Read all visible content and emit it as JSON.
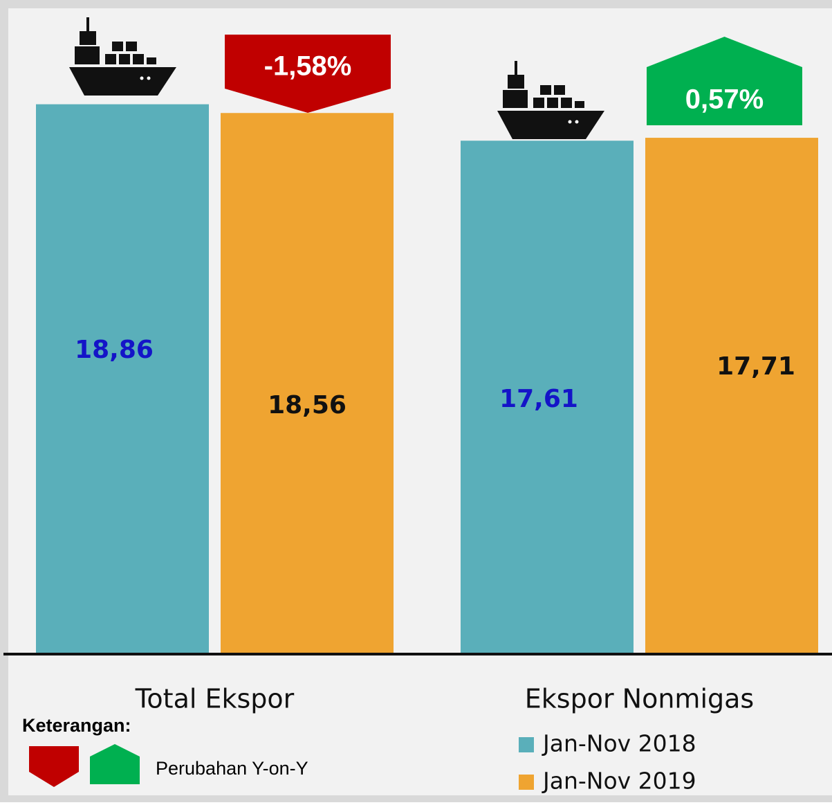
{
  "chart_data": {
    "type": "bar",
    "categories": [
      "Total Ekspor",
      "Ekspor Nonmigas"
    ],
    "series": [
      {
        "name": "Jan-Nov 2018",
        "color": "#5aafba",
        "label_color": "#1414c8",
        "values": [
          18.86,
          17.61
        ],
        "value_labels": [
          "18,86",
          "17,61"
        ]
      },
      {
        "name": "Jan-Nov 2019",
        "color": "#efa431",
        "label_color": "#111111",
        "values": [
          18.56,
          17.71
        ],
        "value_labels": [
          "18,56",
          "17,71"
        ]
      }
    ],
    "ylim": [
      0,
      20
    ],
    "annotations": [
      {
        "text": "-1,58%",
        "color": "#c00000",
        "direction": "down"
      },
      {
        "text": "0,57%",
        "color": "#00b050",
        "direction": "up"
      }
    ],
    "legend_note": {
      "title": "Keterangan:",
      "label": "Perubahan Y-on-Y"
    }
  }
}
